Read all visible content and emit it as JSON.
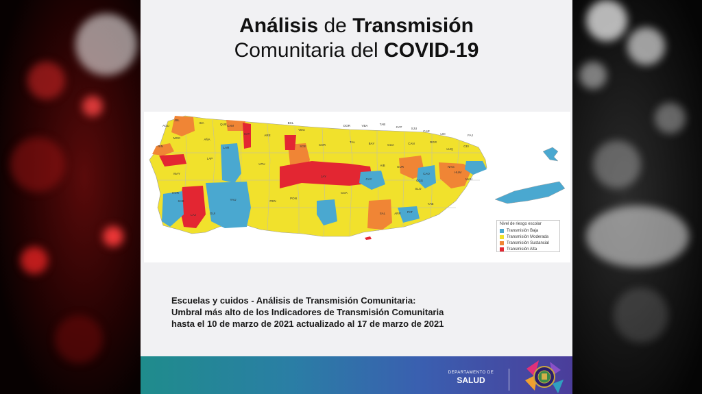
{
  "title": {
    "line1_bold_a": "Análisis",
    "line1_thin": "de",
    "line1_bold_b": "Transmisión",
    "line2_thin": "Comunitaria del",
    "line2_bold": "COVID-19"
  },
  "legend": {
    "title": "Nivel de riesgo escolar",
    "items": [
      {
        "label": "Transmisión Baja",
        "color": "#4aa8d0"
      },
      {
        "label": "Transmisión Moderada",
        "color": "#f1e12c"
      },
      {
        "label": "Transmisión Sustancial",
        "color": "#f08535"
      },
      {
        "label": "Transmisión Alta",
        "color": "#e32632"
      }
    ]
  },
  "municipios": [
    "JBL",
    "ISA",
    "QUE",
    "CAM",
    "HAT",
    "ARE",
    "BCL",
    "DOR",
    "VBA",
    "TAB",
    "CAT",
    "SJU",
    "CAR",
    "LOI",
    "FAJ",
    "MOC",
    "LAR",
    "UTU",
    "COR",
    "TAL",
    "BAY",
    "GUA",
    "CAN",
    "RGR",
    "CEI",
    "VEG",
    "AGU",
    "AÑA",
    "SGE",
    "LUQ",
    "RIN",
    "MAY",
    "CGS",
    "HOR",
    "JAY",
    "AIB",
    "GUR",
    "NAG",
    "HUM",
    "SAB",
    "LAJ",
    "GUI",
    "PON",
    "PEN",
    "COA",
    "SAL",
    "CAY",
    "SLO",
    "MAU",
    "YAB",
    "YAU",
    "ARR",
    "PAT",
    "CAO",
    "LAP"
  ],
  "caption": {
    "line1": "Escuelas y cuidos -  Análisis de Transmisión Comunitaria:",
    "line2": "Umbral más alto de los Indicadores de Transmisión Comunitaria",
    "line3": "hasta el 10 de marzo de 2021 actualizado al 17 de marzo de 2021"
  },
  "footer": {
    "dept_line1": "DEPARTAMENTO DE",
    "dept_line2": "SALUD"
  },
  "colors": {
    "low": "#4aa8d0",
    "moderate": "#f1e12c",
    "substantial": "#f08535",
    "high": "#e32632"
  }
}
